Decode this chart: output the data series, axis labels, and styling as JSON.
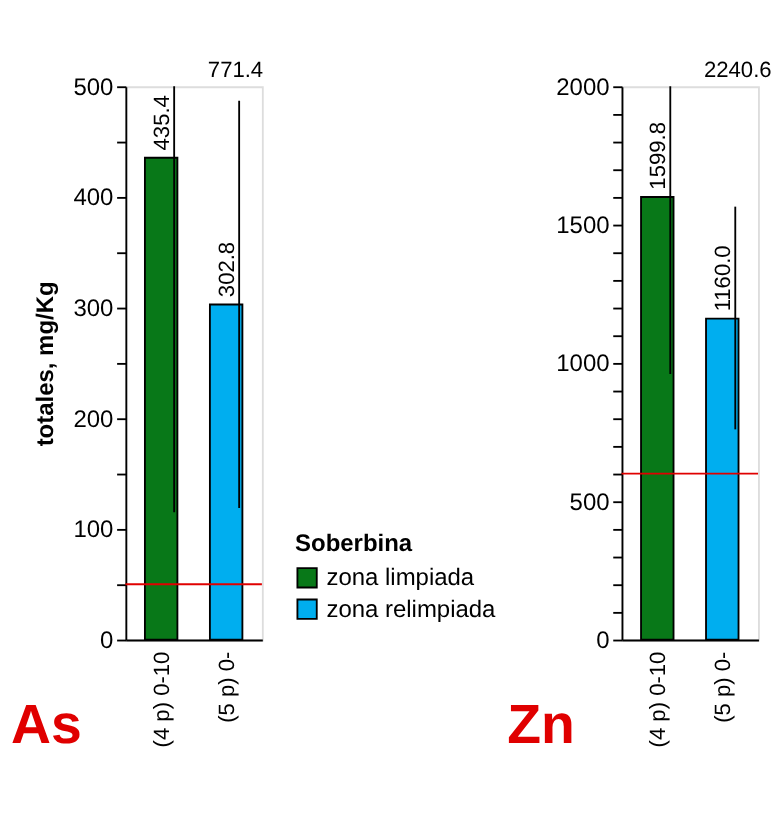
{
  "chart_data": [
    {
      "type": "bar",
      "ylabel": "totales, mg/Kg",
      "legend_title": "Soberbina",
      "legend": "bottom right",
      "grid": false,
      "categories": [
        "(4 p) 0-10",
        "(5 p) 0-"
      ],
      "series": [
        {
          "name": "zona limpiada",
          "color": "#087818",
          "values": [
            435.4,
            null
          ],
          "value_labels": [
            "435.4",
            null
          ],
          "errors": [
            [
              115,
              500
            ],
            null
          ]
        },
        {
          "name": "zona relimpiada",
          "color": "#00aeef",
          "values": [
            null,
            302.8
          ],
          "value_labels": [
            null,
            "302.8"
          ],
          "errors": [
            null,
            [
              119,
              487
            ]
          ]
        }
      ],
      "ylim": [
        0,
        500
      ],
      "yticks": [
        0,
        {
          "value": 50,
          "label": null
        },
        100,
        {
          "value": 150,
          "label": null
        },
        200,
        {
          "value": 250,
          "label": null
        },
        300,
        {
          "value": 350,
          "label": null
        },
        400,
        {
          "value": 450,
          "label": null
        },
        500
      ],
      "ref_lines": [
        {
          "axis": "y",
          "value": 50,
          "color": "#e00000"
        }
      ],
      "annotations": [
        "As",
        "771.4"
      ]
    },
    {
      "type": "bar",
      "legend": false,
      "grid": false,
      "categories": [
        "(4 p) 0-10",
        "(5 p) 0-"
      ],
      "series": [
        {
          "name": "zona limpiada",
          "color": "#087818",
          "values": [
            1599.8,
            null
          ],
          "value_labels": [
            "1599.8",
            null
          ],
          "errors": [
            [
              960,
              2000
            ],
            null
          ]
        },
        {
          "name": "zona relimpiada",
          "color": "#00aeef",
          "values": [
            null,
            1160.0
          ],
          "value_labels": [
            null,
            "1160.0"
          ],
          "errors": [
            null,
            [
              760,
              1565
            ]
          ]
        }
      ],
      "ylim": [
        0,
        2000
      ],
      "yticks": [
        0,
        {
          "value": 100,
          "label": null
        },
        {
          "value": 200,
          "label": null
        },
        {
          "value": 300,
          "label": null
        },
        {
          "value": 400,
          "label": null
        },
        500,
        {
          "value": 600,
          "label": null
        },
        {
          "value": 700,
          "label": null
        },
        {
          "value": 800,
          "label": null
        },
        {
          "value": 900,
          "label": null
        },
        1000,
        {
          "value": 1100,
          "label": null
        },
        {
          "value": 1200,
          "label": null
        },
        {
          "value": 1300,
          "label": null
        },
        {
          "value": 1400,
          "label": null
        },
        1500,
        {
          "value": 1600,
          "label": null
        },
        {
          "value": 1700,
          "label": null
        },
        {
          "value": 1800,
          "label": null
        },
        {
          "value": 1900,
          "label": null
        },
        2000
      ],
      "ref_lines": [
        {
          "axis": "y",
          "value": 600,
          "color": "#e00000"
        }
      ],
      "annotations": [
        "Zn",
        "2240.6"
      ]
    }
  ]
}
